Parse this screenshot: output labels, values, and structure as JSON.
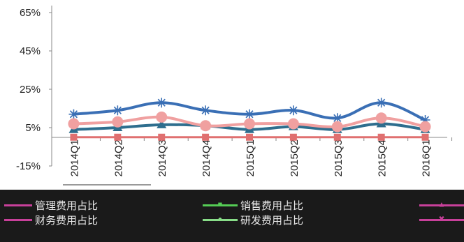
{
  "chart_data": {
    "type": "line",
    "categories": [
      "2014Q1",
      "2014Q2",
      "2014Q3",
      "2014Q4",
      "2015Q1",
      "2015Q2",
      "2015Q3",
      "2015Q4",
      "2016Q1"
    ],
    "y_ticks": [
      "65%",
      "45%",
      "25%",
      "5%",
      "-15%"
    ],
    "ylim": [
      -15,
      65
    ],
    "grid": false,
    "legend_position": "bottom",
    "series": [
      {
        "name": "管理费用占比",
        "color": "#3a6fb5",
        "marker": "asterisk",
        "values": [
          12,
          14,
          18,
          14,
          12,
          14,
          10,
          18,
          9
        ]
      },
      {
        "name": "财务费用占比",
        "color": "#e07070",
        "marker": "square",
        "values": [
          0,
          0,
          0,
          0,
          0,
          0,
          0,
          0,
          0
        ]
      },
      {
        "name": "销售费用占比",
        "color": "#2e6e8e",
        "marker": "triangle",
        "values": [
          4,
          5,
          6.5,
          6,
          4,
          5.5,
          4,
          7,
          4
        ]
      },
      {
        "name": "研发费用占比",
        "color": "#f0a0a0",
        "marker": "circle",
        "values": [
          7,
          8,
          10.5,
          6,
          7,
          7,
          5.5,
          10,
          5.5
        ]
      }
    ]
  },
  "legend": {
    "items": [
      {
        "label": "管理费用占比",
        "color": "#c8409a",
        "marker": ""
      },
      {
        "label": "销售费用占比",
        "color": "#55cc55",
        "marker": "■"
      },
      {
        "label": "",
        "color": "#c8409a",
        "marker": "▲"
      },
      {
        "label": "财务费用占比",
        "color": "#c8409a",
        "marker": ""
      },
      {
        "label": "研发费用占比",
        "color": "#88dd88",
        "marker": "●"
      },
      {
        "label": "",
        "color": "#c8409a",
        "marker": "✖"
      }
    ]
  }
}
